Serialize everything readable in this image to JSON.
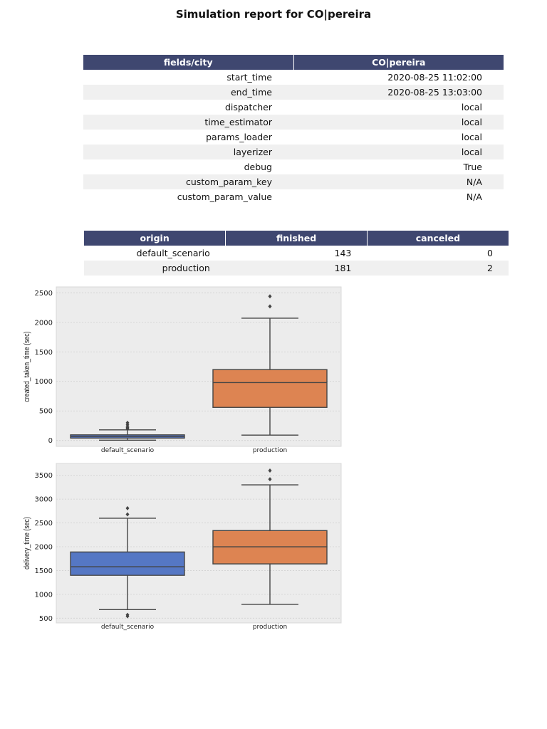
{
  "page": {
    "title": "Simulation report for CO|pereira"
  },
  "meta_table": {
    "headers": [
      "fields/city",
      "CO|pereira"
    ],
    "rows": [
      [
        "start_time",
        "2020-08-25 11:02:00"
      ],
      [
        "end_time",
        "2020-08-25 13:03:00"
      ],
      [
        "dispatcher",
        "local"
      ],
      [
        "time_estimator",
        "local"
      ],
      [
        "params_loader",
        "local"
      ],
      [
        "layerizer",
        "local"
      ],
      [
        "debug",
        "True"
      ],
      [
        "custom_param_key",
        "N/A"
      ],
      [
        "custom_param_value",
        "N/A"
      ]
    ]
  },
  "origin_table": {
    "headers": [
      "origin",
      "finished",
      "canceled"
    ],
    "rows": [
      [
        "default_scenario",
        "143",
        "0"
      ],
      [
        "production",
        "181",
        "2"
      ]
    ]
  },
  "chart_data": [
    {
      "type": "box",
      "categories": [
        "default_scenario",
        "production"
      ],
      "ylabel": "created_taken_time (sec)",
      "ylim": [
        -100,
        2600
      ],
      "yticks": [
        0,
        500,
        1000,
        1500,
        2000,
        2500
      ],
      "boxes": [
        {
          "name": "default_scenario",
          "whisker_low": 5,
          "q1": 40,
          "median": 65,
          "q3": 95,
          "whisker_high": 180,
          "outliers": [
            200,
            215,
            230,
            265,
            300
          ],
          "color": "#5577c4"
        },
        {
          "name": "production",
          "whisker_low": 90,
          "q1": 560,
          "median": 980,
          "q3": 1200,
          "whisker_high": 2070,
          "outliers": [
            2270,
            2440
          ],
          "color": "#dd8452"
        }
      ]
    },
    {
      "type": "box",
      "categories": [
        "default_scenario",
        "production"
      ],
      "ylabel": "delivery_time (sec)",
      "ylim": [
        400,
        3750
      ],
      "yticks": [
        500,
        1000,
        1500,
        2000,
        2500,
        3000,
        3500
      ],
      "boxes": [
        {
          "name": "default_scenario",
          "whisker_low": 680,
          "q1": 1400,
          "median": 1580,
          "q3": 1890,
          "whisker_high": 2600,
          "outliers": [
            540,
            570,
            2680,
            2810
          ],
          "color": "#5577c4"
        },
        {
          "name": "production",
          "whisker_low": 790,
          "q1": 1640,
          "median": 2000,
          "q3": 2340,
          "whisker_high": 3300,
          "outliers": [
            3420,
            3600
          ],
          "color": "#dd8452"
        }
      ]
    }
  ]
}
